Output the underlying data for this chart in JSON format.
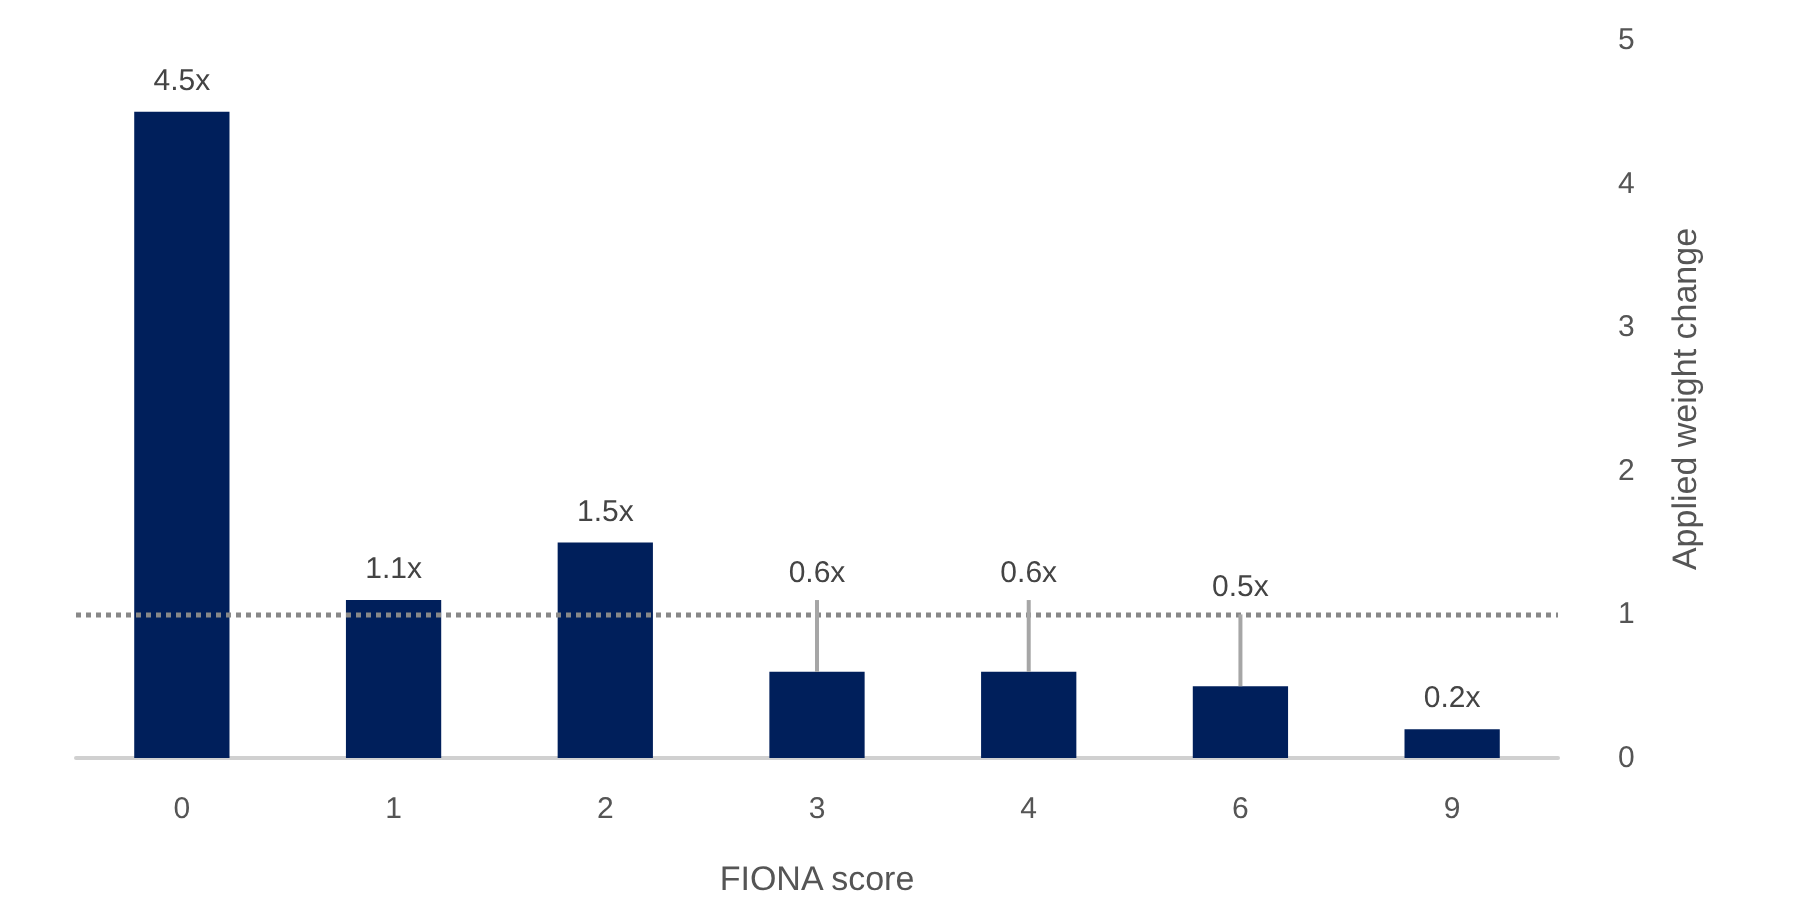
{
  "chart_data": {
    "type": "bar",
    "xlabel": "FIONA score",
    "ylabel": "Applied weight change",
    "categories": [
      "0",
      "1",
      "2",
      "3",
      "4",
      "6",
      "9"
    ],
    "values": [
      4.5,
      1.1,
      1.5,
      0.6,
      0.6,
      0.5,
      0.2
    ],
    "value_labels": [
      "4.5x",
      "1.1x",
      "1.5x",
      "0.6x",
      "0.6x",
      "0.5x",
      "0.2x"
    ],
    "errors": [
      null,
      null,
      null,
      [
        0.6,
        1.1
      ],
      [
        0.6,
        1.1
      ],
      [
        0.5,
        1.0
      ],
      null
    ],
    "color": "#001f5b",
    "ylim": [
      0,
      5
    ],
    "yticks": [
      0,
      1,
      2,
      3,
      4,
      5
    ],
    "grid": false,
    "ref_lines": [
      {
        "axis": "y",
        "value": 1,
        "color": "#888888",
        "line_style": "dotted"
      }
    ]
  }
}
